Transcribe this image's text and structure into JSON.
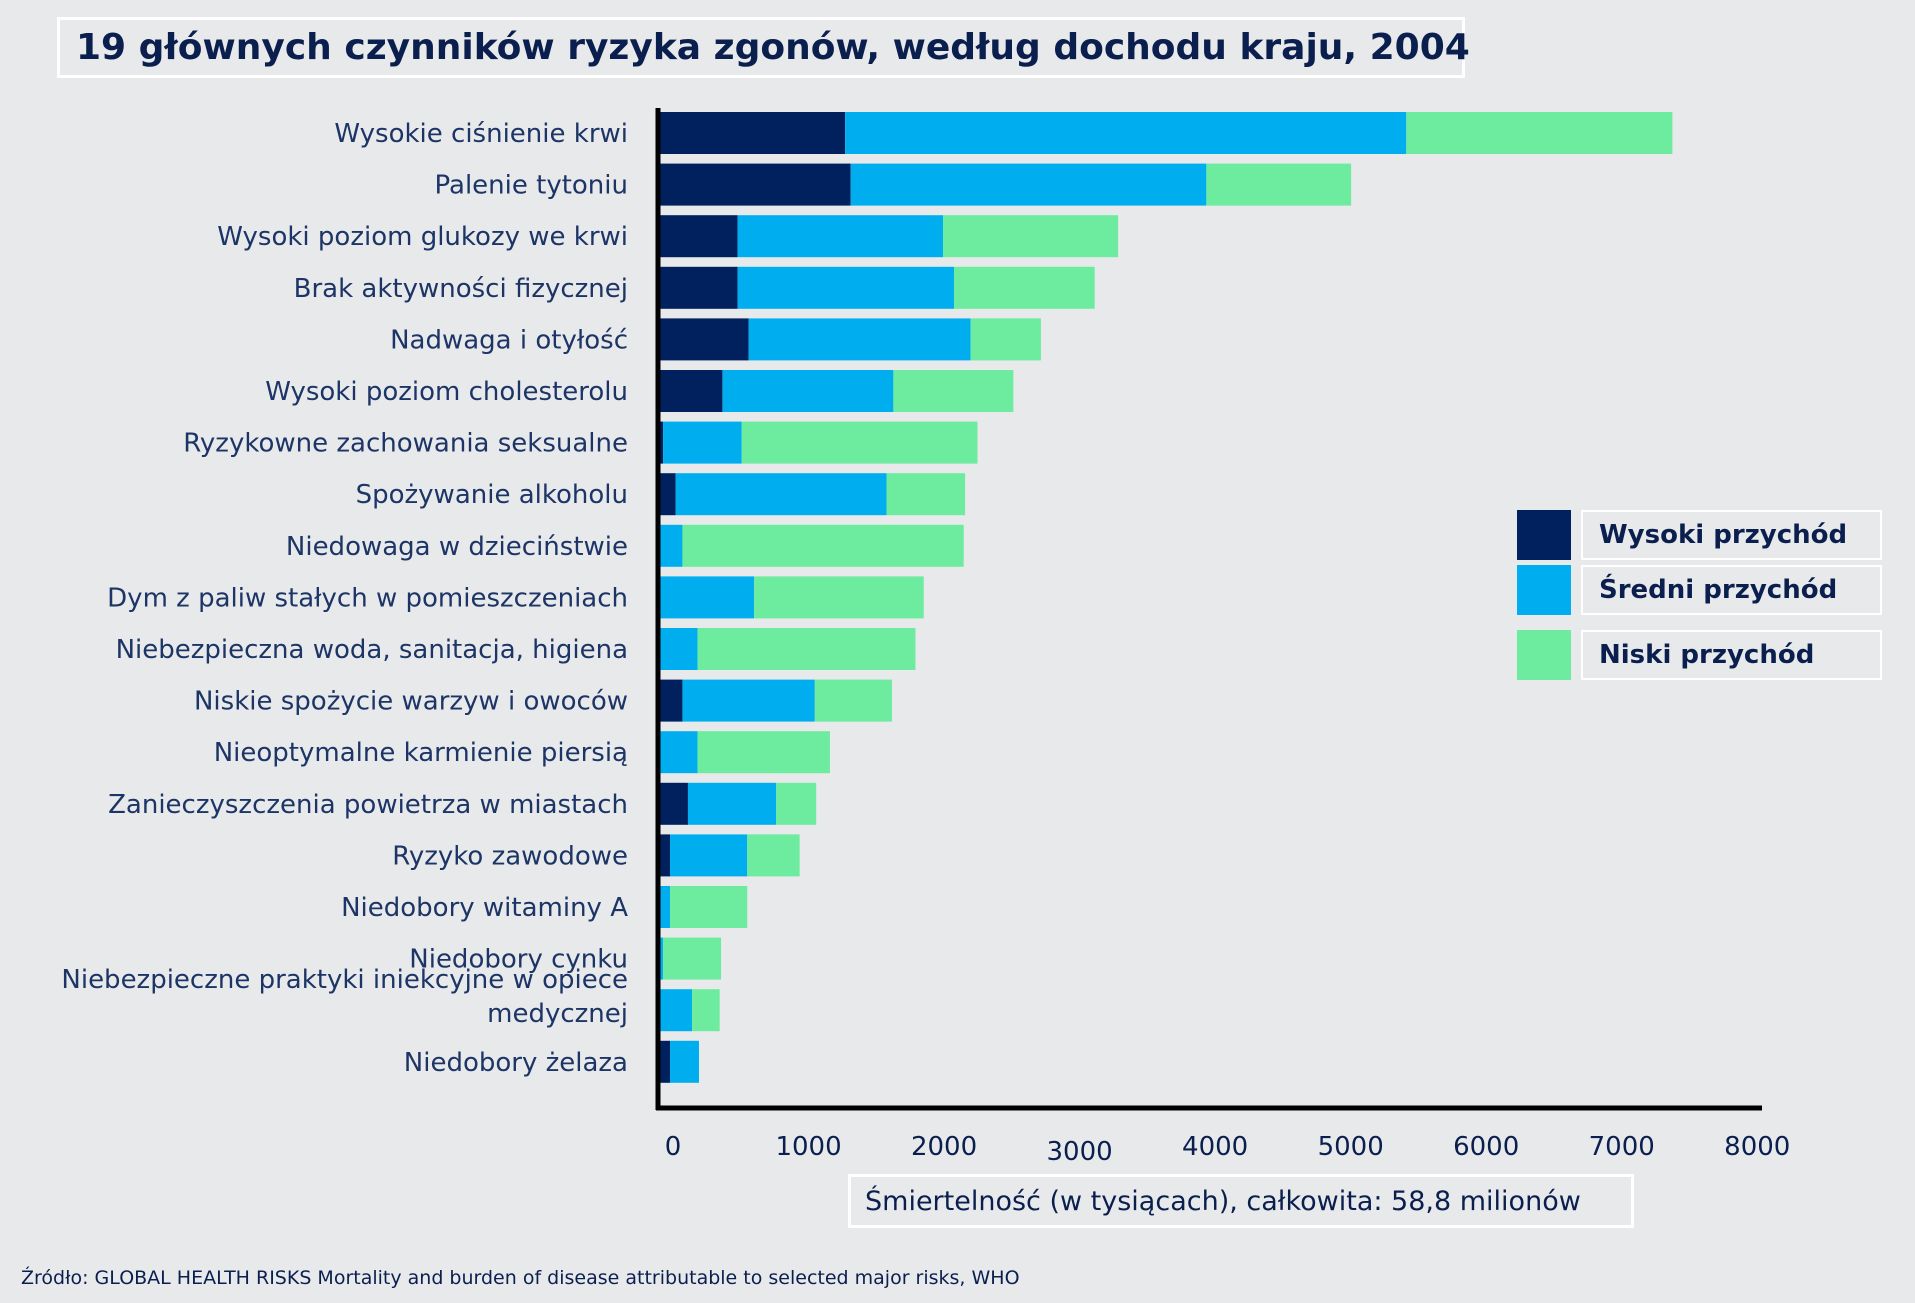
{
  "title": "19 głównych czynników ryzyka zgonów, według dochodu kraju, 2004",
  "legend": [
    {
      "label": "Wysoki przychód",
      "color": "#00215e"
    },
    {
      "label": "Średni przychód",
      "color": "#00aeef"
    },
    {
      "label": "Niski przychód",
      "color": "#6dec9f"
    }
  ],
  "source": "Źródło: GLOBAL HEALTH RISKS  Mortality and burden of disease attributable to selected major risks, WHO",
  "chart_data": {
    "type": "bar",
    "orientation": "horizontal",
    "stacked": true,
    "title": "19 głównych czynników ryzyka zgonów, według dochodu kraju, 2004",
    "xlabel": "Śmiertelność (w tysiącach), całkowita: 58,8 milionów",
    "xlim": [
      0,
      8000
    ],
    "xticks": [
      0,
      1000,
      2000,
      3000,
      4000,
      5000,
      6000,
      7000,
      8000
    ],
    "categories": [
      "Wysokie ciśnienie krwi",
      "Palenie tytoniu",
      "Wysoki poziom glukozy we krwi",
      "Brak aktywności fizycznej",
      "Nadwaga i otyłość",
      "Wysoki poziom cholesterolu",
      "Ryzykowne zachowania seksualne",
      "Spożywanie alkoholu",
      "Niedowaga w dzieciństwie",
      "Dym z paliw stałych w pomieszczeniach",
      "Niebezpieczna woda, sanitacja, higiena",
      "Niskie spożycie warzyw i owoców",
      "Nieoptymalne karmienie piersią",
      "Zanieczyszczenia powietrza w miastach",
      "Ryzyko zawodowe",
      "Niedobory witaminy A",
      "Niedobory cynku",
      "Niebezpieczne praktyki iniekcyjne w opiece medycznej",
      "Niedobory żelaza"
    ],
    "series": [
      {
        "name": "Wysoki przychód",
        "color": "#00215e",
        "values": [
          1350,
          1390,
          570,
          570,
          650,
          460,
          30,
          120,
          10,
          10,
          10,
          170,
          10,
          210,
          80,
          10,
          10,
          10,
          80
        ]
      },
      {
        "name": "Średni przychód",
        "color": "#00aeef",
        "values": [
          4070,
          2580,
          1490,
          1570,
          1610,
          1240,
          570,
          1530,
          160,
          680,
          270,
          960,
          270,
          640,
          560,
          70,
          20,
          230,
          210
        ]
      },
      {
        "name": "Niski przychód",
        "color": "#6dec9f",
        "values": [
          1930,
          1050,
          1270,
          1020,
          510,
          870,
          1710,
          570,
          2040,
          1230,
          1580,
          560,
          960,
          290,
          380,
          560,
          420,
          200,
          0
        ]
      }
    ]
  }
}
